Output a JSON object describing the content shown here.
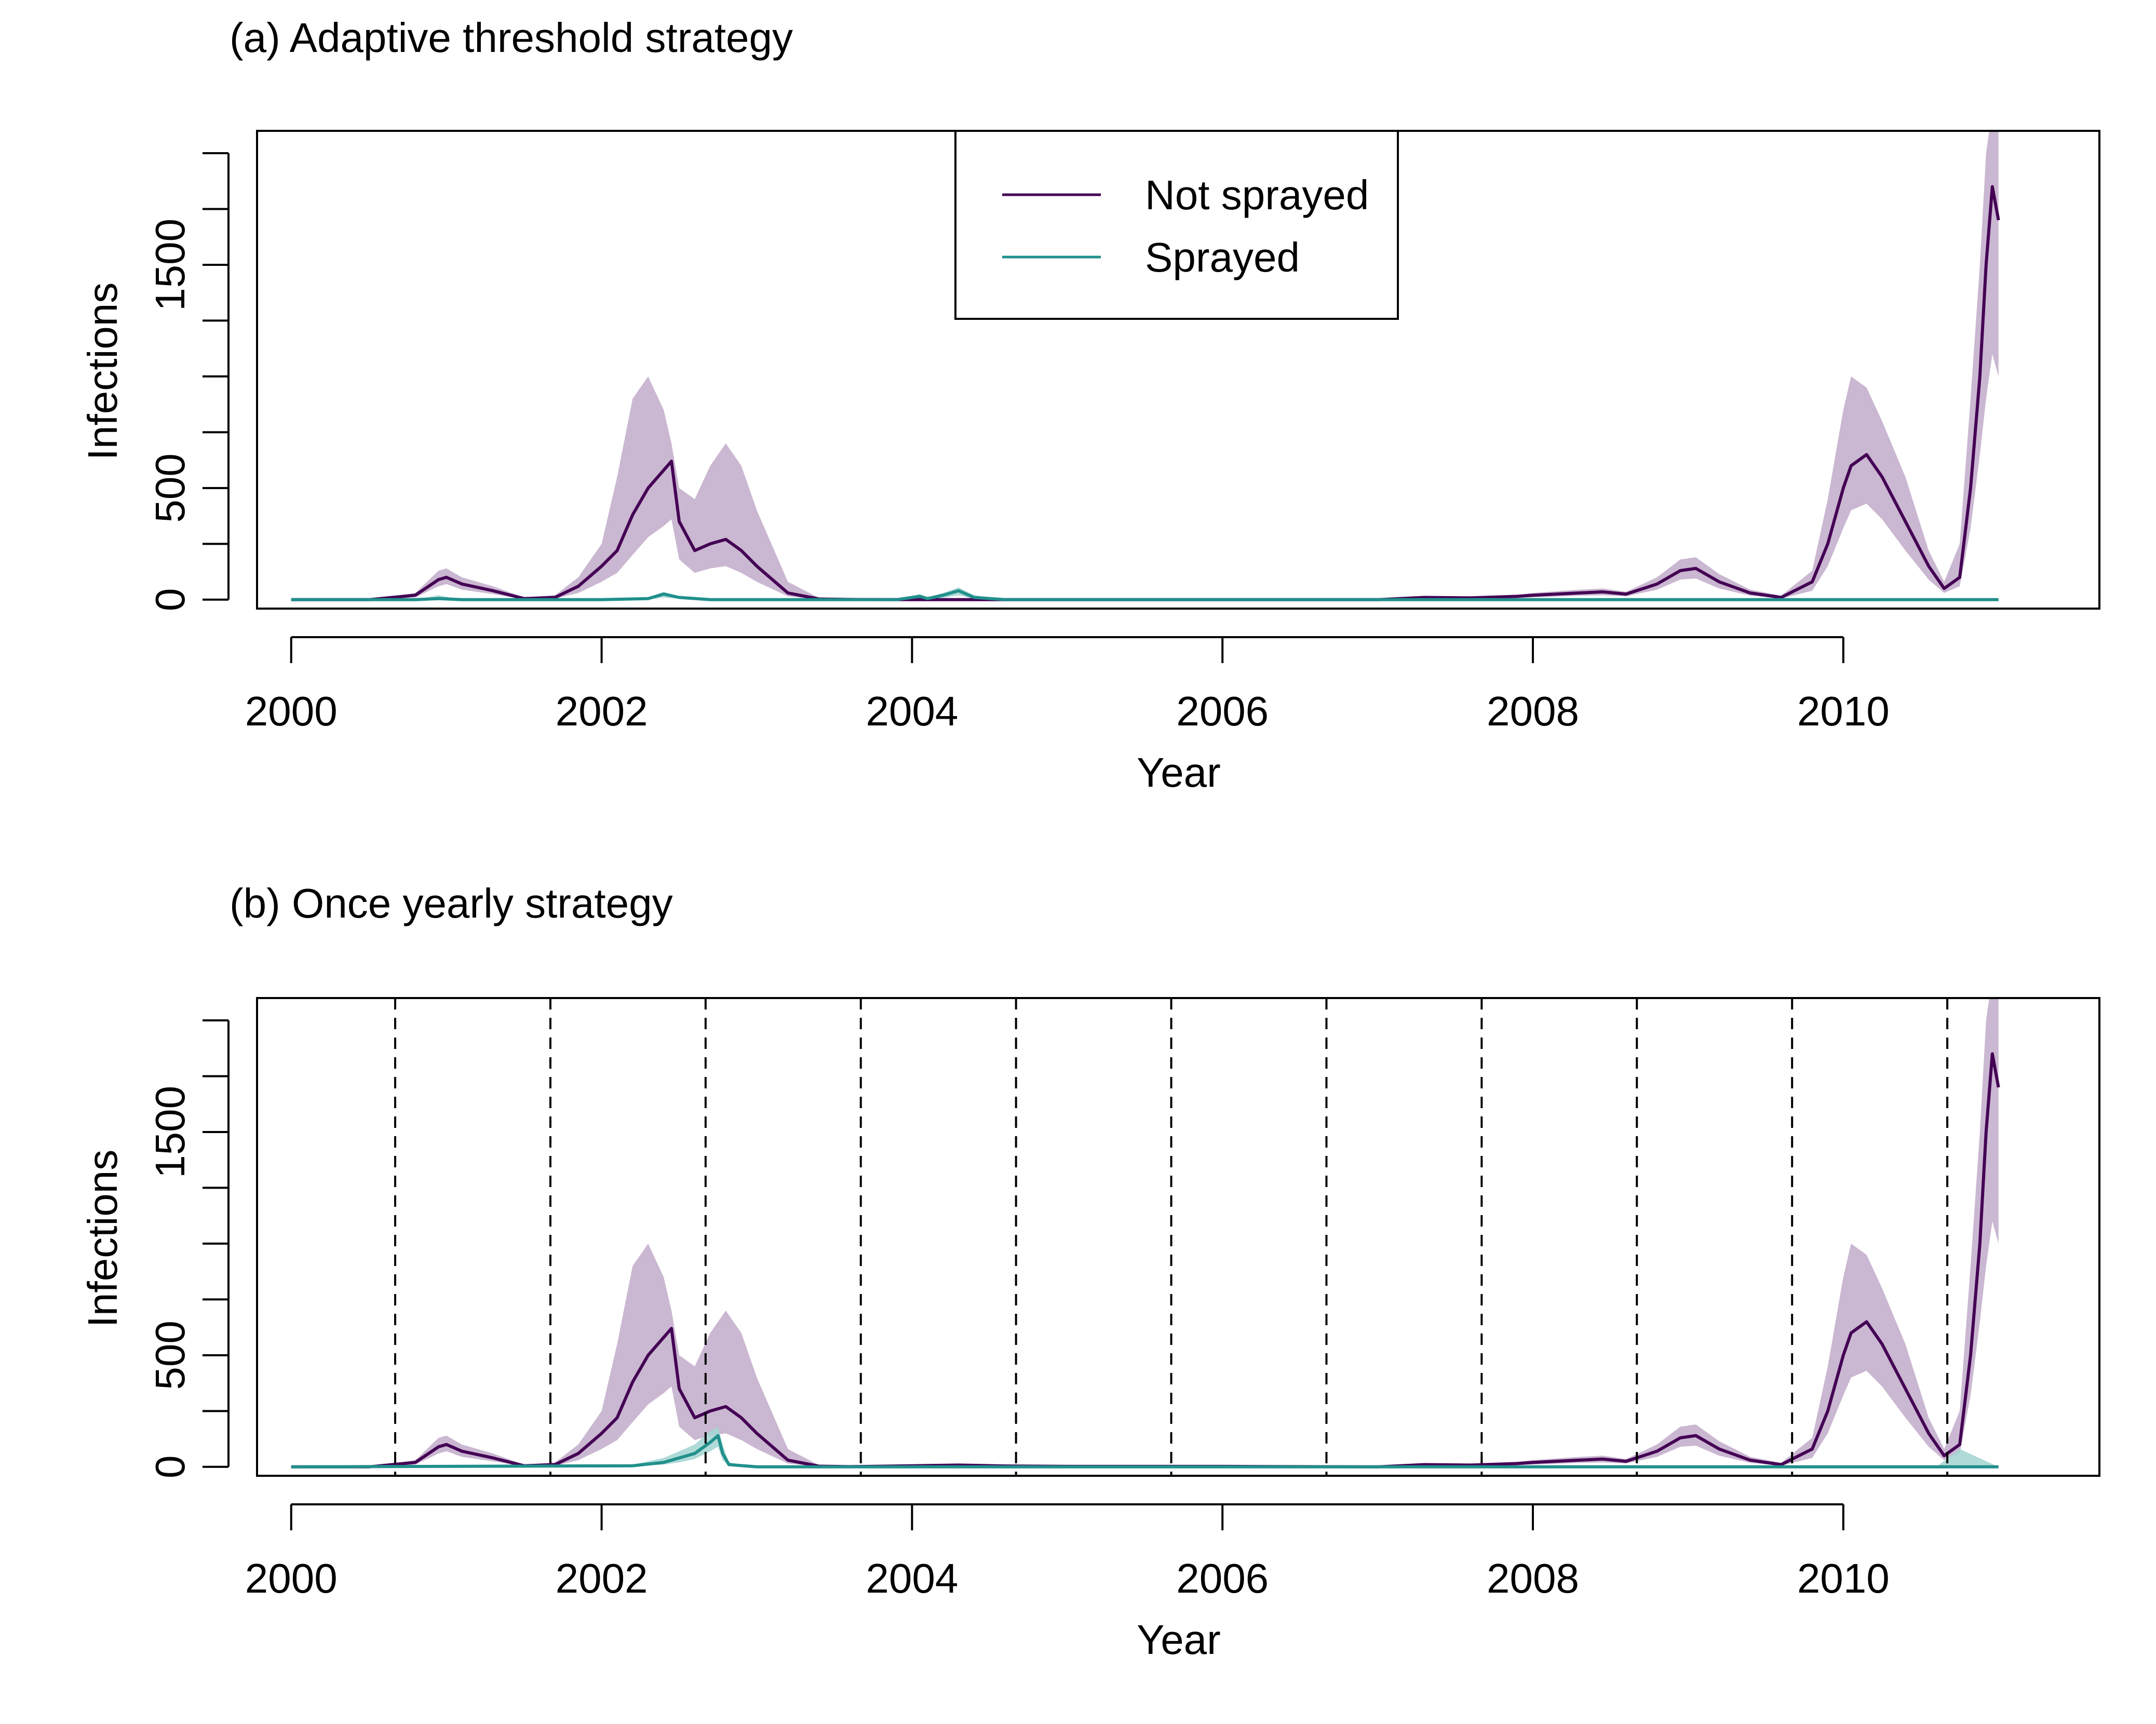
{
  "colors": {
    "not_sprayed": "#440154",
    "not_sprayed_band": "#c4afcc",
    "sprayed": "#21908c",
    "sprayed_band": "#a6d6d4",
    "axis": "#000000"
  },
  "chart_data": [
    {
      "type": "line",
      "title": "(a) Adaptive threshold strategy",
      "xlabel": "Year",
      "ylabel": "Infections",
      "xlim": [
        1999.78,
        2011.65
      ],
      "ylim": [
        -40,
        2100
      ],
      "x_ticks": [
        2000,
        2002,
        2004,
        2006,
        2008,
        2010
      ],
      "x_tick_labels": [
        "2000",
        "2002",
        "2004",
        "2006",
        "2008",
        "2010"
      ],
      "y_ticks": [
        0,
        250,
        500,
        750,
        1000,
        1250,
        1500,
        1750,
        2000
      ],
      "y_tick_labels": [
        "0",
        "",
        "500",
        "",
        "",
        "",
        "1500",
        "",
        ""
      ],
      "grid": false,
      "legend": {
        "position": "top-center",
        "entries": [
          "Not sprayed",
          "Sprayed"
        ]
      },
      "spray_times": [],
      "series": [
        {
          "name": "Not sprayed",
          "color": "#440154",
          "band_color": "#c4afcc",
          "x": [
            2000.0,
            2000.5,
            2000.8,
            2000.95,
            2001.0,
            2001.1,
            2001.3,
            2001.5,
            2001.7,
            2001.85,
            2002.0,
            2002.1,
            2002.2,
            2002.3,
            2002.4,
            2002.45,
            2002.5,
            2002.6,
            2002.7,
            2002.8,
            2002.9,
            2003.0,
            2003.2,
            2003.4,
            2003.6,
            2004.0,
            2004.3,
            2004.6,
            2005.0,
            2006.0,
            2007.0,
            2007.3,
            2007.6,
            2007.9,
            2008.0,
            2008.3,
            2008.45,
            2008.6,
            2008.8,
            2008.95,
            2009.05,
            2009.2,
            2009.4,
            2009.6,
            2009.8,
            2009.9,
            2010.0,
            2010.05,
            2010.15,
            2010.25,
            2010.4,
            2010.55,
            2010.65,
            2010.75,
            2010.82,
            2010.88,
            2010.92,
            2010.96,
            2011.0
          ],
          "y": [
            0,
            0,
            20,
            90,
            100,
            70,
            40,
            5,
            10,
            60,
            150,
            220,
            380,
            500,
            580,
            620,
            350,
            220,
            250,
            270,
            220,
            150,
            30,
            3,
            1,
            0,
            0,
            0,
            0,
            0,
            0,
            10,
            8,
            15,
            20,
            30,
            35,
            25,
            70,
            130,
            140,
            80,
            30,
            10,
            80,
            250,
            500,
            600,
            650,
            550,
            350,
            150,
            50,
            100,
            500,
            1000,
            1500,
            1850,
            1700
          ],
          "lower": [
            0,
            0,
            10,
            60,
            70,
            45,
            25,
            2,
            5,
            30,
            80,
            120,
            200,
            280,
            330,
            360,
            180,
            120,
            140,
            150,
            120,
            80,
            15,
            1,
            0,
            0,
            0,
            0,
            0,
            0,
            0,
            5,
            4,
            8,
            10,
            18,
            20,
            15,
            45,
            90,
            95,
            50,
            18,
            5,
            40,
            150,
            320,
            400,
            430,
            360,
            220,
            90,
            30,
            60,
            320,
            650,
            900,
            1100,
            1000
          ],
          "upper": [
            0,
            0,
            30,
            130,
            140,
            100,
            60,
            10,
            20,
            100,
            250,
            550,
            900,
            1000,
            850,
            700,
            500,
            450,
            600,
            700,
            600,
            400,
            80,
            8,
            2,
            0,
            0,
            0,
            0,
            0,
            0,
            15,
            12,
            22,
            30,
            45,
            50,
            35,
            100,
            180,
            190,
            115,
            45,
            18,
            130,
            450,
            850,
            1000,
            950,
            800,
            550,
            220,
            80,
            250,
            900,
            1500,
            2000,
            2200,
            2200
          ]
        },
        {
          "name": "Sprayed",
          "color": "#21908c",
          "band_color": "#a6d6d4",
          "x": [
            2000.0,
            2000.8,
            2000.95,
            2001.1,
            2002.0,
            2002.3,
            2002.4,
            2002.5,
            2002.7,
            2003.0,
            2003.9,
            2004.05,
            2004.1,
            2004.2,
            2004.3,
            2004.4,
            2004.6,
            2011.0
          ],
          "y": [
            0,
            0,
            5,
            0,
            0,
            5,
            25,
            10,
            0,
            0,
            0,
            15,
            5,
            20,
            40,
            10,
            0,
            0
          ],
          "lower": [
            0,
            0,
            0,
            0,
            0,
            0,
            10,
            3,
            0,
            0,
            0,
            5,
            0,
            8,
            20,
            3,
            0,
            0
          ],
          "upper": [
            0,
            0,
            20,
            0,
            0,
            10,
            35,
            15,
            0,
            0,
            0,
            25,
            10,
            30,
            55,
            20,
            0,
            0
          ]
        }
      ]
    },
    {
      "type": "line",
      "title": "(b) Once yearly strategy",
      "xlabel": "Year",
      "ylabel": "Infections",
      "xlim": [
        1999.78,
        2011.65
      ],
      "ylim": [
        -40,
        2100
      ],
      "x_ticks": [
        2000,
        2002,
        2004,
        2006,
        2008,
        2010
      ],
      "x_tick_labels": [
        "2000",
        "2002",
        "2004",
        "2006",
        "2008",
        "2010"
      ],
      "y_ticks": [
        0,
        250,
        500,
        750,
        1000,
        1250,
        1500,
        1750,
        2000
      ],
      "y_tick_labels": [
        "0",
        "",
        "500",
        "",
        "",
        "",
        "1500",
        "",
        ""
      ],
      "grid": false,
      "spray_times": [
        2000.67,
        2001.67,
        2002.67,
        2003.67,
        2004.67,
        2005.67,
        2006.67,
        2007.67,
        2008.67,
        2009.67,
        2010.67
      ],
      "series": [
        {
          "name": "Not sprayed",
          "color": "#440154",
          "band_color": "#c4afcc",
          "x": [
            2000.0,
            2000.5,
            2000.8,
            2000.95,
            2001.0,
            2001.1,
            2001.3,
            2001.5,
            2001.7,
            2001.85,
            2002.0,
            2002.1,
            2002.2,
            2002.3,
            2002.4,
            2002.45,
            2002.5,
            2002.6,
            2002.7,
            2002.8,
            2002.9,
            2003.0,
            2003.2,
            2003.4,
            2003.6,
            2004.0,
            2004.3,
            2004.6,
            2005.0,
            2006.0,
            2007.0,
            2007.3,
            2007.6,
            2007.9,
            2008.0,
            2008.3,
            2008.45,
            2008.6,
            2008.8,
            2008.95,
            2009.05,
            2009.2,
            2009.4,
            2009.6,
            2009.8,
            2009.9,
            2010.0,
            2010.05,
            2010.15,
            2010.25,
            2010.4,
            2010.55,
            2010.65,
            2010.75,
            2010.82,
            2010.88,
            2010.92,
            2010.96,
            2011.0
          ],
          "y": [
            0,
            0,
            20,
            90,
            100,
            70,
            40,
            5,
            10,
            60,
            150,
            220,
            380,
            500,
            580,
            620,
            350,
            220,
            250,
            270,
            220,
            150,
            30,
            3,
            1,
            5,
            8,
            4,
            2,
            2,
            0,
            10,
            8,
            15,
            20,
            30,
            35,
            25,
            70,
            130,
            140,
            80,
            30,
            10,
            80,
            250,
            500,
            600,
            650,
            550,
            350,
            150,
            50,
            100,
            500,
            1000,
            1500,
            1850,
            1700
          ],
          "lower": [
            0,
            0,
            10,
            60,
            70,
            45,
            25,
            2,
            5,
            30,
            80,
            120,
            200,
            280,
            330,
            360,
            180,
            120,
            140,
            150,
            120,
            80,
            15,
            1,
            0,
            2,
            4,
            2,
            1,
            1,
            0,
            5,
            4,
            8,
            10,
            18,
            20,
            15,
            45,
            90,
            95,
            50,
            18,
            5,
            40,
            150,
            320,
            400,
            430,
            360,
            220,
            90,
            30,
            60,
            320,
            650,
            900,
            1100,
            1000
          ],
          "upper": [
            0,
            0,
            30,
            130,
            140,
            100,
            60,
            10,
            20,
            100,
            250,
            550,
            900,
            1000,
            850,
            700,
            500,
            450,
            600,
            700,
            600,
            400,
            80,
            8,
            2,
            8,
            12,
            6,
            3,
            3,
            0,
            15,
            12,
            22,
            30,
            45,
            50,
            35,
            100,
            180,
            190,
            115,
            45,
            18,
            130,
            450,
            850,
            1000,
            950,
            800,
            550,
            220,
            80,
            250,
            900,
            1500,
            2000,
            2200,
            2200
          ]
        },
        {
          "name": "Sprayed",
          "color": "#21908c",
          "band_color": "#a6d6d4",
          "x": [
            2000.0,
            2002.2,
            2002.4,
            2002.5,
            2002.6,
            2002.7,
            2002.75,
            2002.78,
            2002.82,
            2003.0,
            2010.6,
            2010.75,
            2011.0
          ],
          "y": [
            0,
            5,
            20,
            40,
            60,
            110,
            140,
            60,
            10,
            0,
            0,
            0,
            0
          ],
          "lower": [
            0,
            2,
            10,
            20,
            35,
            70,
            90,
            30,
            5,
            0,
            0,
            0,
            0
          ],
          "upper": [
            0,
            10,
            40,
            70,
            100,
            160,
            180,
            100,
            20,
            0,
            0,
            80,
            0
          ]
        }
      ]
    }
  ]
}
